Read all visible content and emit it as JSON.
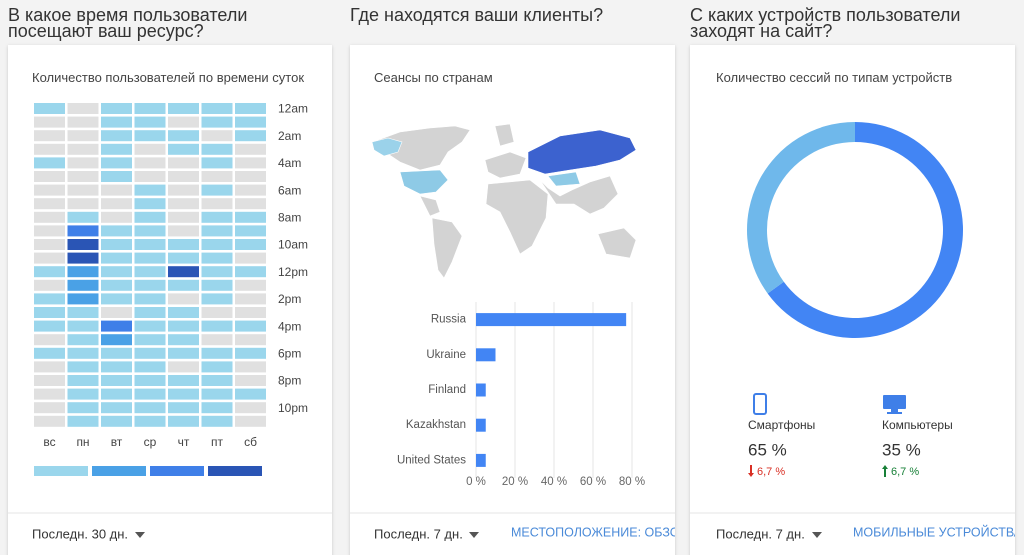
{
  "sections": [
    {
      "heading": "В какое время пользователи посещают ваш ресурс?",
      "footer": {
        "period": "Последн. 30 дн."
      }
    },
    {
      "heading": "Где находятся ваши клиенты?",
      "footer": {
        "period": "Последн. 7 дн.",
        "link": "МЕСТОПОЛОЖЕНИЕ: ОБЗОР"
      }
    },
    {
      "heading": "С каких устройств пользователи заходят на сайт?",
      "footer": {
        "period": "Последн. 7 дн.",
        "link": "МОБИЛЬНЫЕ УСТРОЙСТВА"
      }
    }
  ],
  "chart_data": [
    {
      "type": "heatmap",
      "title": "Количество пользователей по времени суток",
      "x": [
        "вс",
        "пн",
        "вт",
        "ср",
        "чт",
        "пт",
        "сб"
      ],
      "y": [
        "12am",
        null,
        "2am",
        null,
        "4am",
        null,
        "6am",
        null,
        "8am",
        null,
        "10am",
        null,
        "12pm",
        null,
        "2pm",
        null,
        "4pm",
        null,
        "6pm",
        null,
        "8pm",
        null,
        "10pm",
        null
      ],
      "values": [
        [
          1,
          0,
          1,
          1,
          1,
          1,
          1
        ],
        [
          0,
          0,
          1,
          1,
          0,
          1,
          1
        ],
        [
          0,
          0,
          1,
          1,
          1,
          0,
          1
        ],
        [
          0,
          0,
          1,
          0,
          1,
          1,
          0
        ],
        [
          1,
          0,
          1,
          0,
          0,
          1,
          0
        ],
        [
          0,
          0,
          1,
          0,
          0,
          0,
          0
        ],
        [
          0,
          0,
          0,
          1,
          0,
          1,
          0
        ],
        [
          0,
          0,
          0,
          1,
          0,
          0,
          0
        ],
        [
          0,
          1,
          0,
          1,
          0,
          1,
          1
        ],
        [
          0,
          3,
          1,
          1,
          0,
          1,
          1
        ],
        [
          0,
          4,
          1,
          1,
          1,
          1,
          1
        ],
        [
          0,
          4,
          1,
          1,
          1,
          1,
          0
        ],
        [
          1,
          2,
          1,
          1,
          4,
          1,
          1
        ],
        [
          0,
          2,
          1,
          1,
          1,
          1,
          0
        ],
        [
          1,
          2,
          1,
          1,
          0,
          1,
          0
        ],
        [
          1,
          1,
          0,
          1,
          1,
          0,
          0
        ],
        [
          1,
          1,
          3,
          1,
          1,
          1,
          1
        ],
        [
          0,
          1,
          2,
          1,
          1,
          0,
          0
        ],
        [
          1,
          1,
          1,
          1,
          1,
          1,
          1
        ],
        [
          0,
          1,
          1,
          1,
          0,
          1,
          0
        ],
        [
          0,
          1,
          1,
          1,
          1,
          1,
          0
        ],
        [
          0,
          1,
          1,
          1,
          1,
          1,
          1
        ],
        [
          0,
          1,
          1,
          1,
          1,
          1,
          0
        ],
        [
          0,
          1,
          1,
          1,
          1,
          1,
          0
        ]
      ],
      "color_scale": [
        "#e0e0e0",
        "#9ad6ec",
        "#4aa1e6",
        "#3f7fe8",
        "#2a55b5"
      ]
    },
    {
      "type": "bar",
      "orientation": "horizontal",
      "title": "Сеансы по странам",
      "categories": [
        "Russia",
        "Ukraine",
        "Finland",
        "Kazakhstan",
        "United States"
      ],
      "values": [
        77,
        10,
        5,
        5,
        5
      ],
      "color": "#4285f4",
      "xlim": [
        0,
        80
      ],
      "xticks": [
        {
          "value": 0,
          "label": "0 %"
        },
        {
          "value": 20,
          "label": "20 %"
        },
        {
          "value": 40,
          "label": "40 %"
        },
        {
          "value": 60,
          "label": "60 %"
        },
        {
          "value": 80,
          "label": "80 %"
        }
      ],
      "grid": true
    },
    {
      "type": "donut",
      "title": "Количество сессий по типам устройств",
      "categories": [
        "Смартфоны",
        "Компьютеры"
      ],
      "values": [
        65,
        35
      ],
      "value_labels": [
        "65 %",
        "35 %"
      ],
      "colors": [
        "#4285f4",
        "#6fb8eb"
      ],
      "changes": [
        "6,7 %",
        "6,7 %"
      ],
      "change_directions": [
        "down",
        "up"
      ]
    }
  ]
}
